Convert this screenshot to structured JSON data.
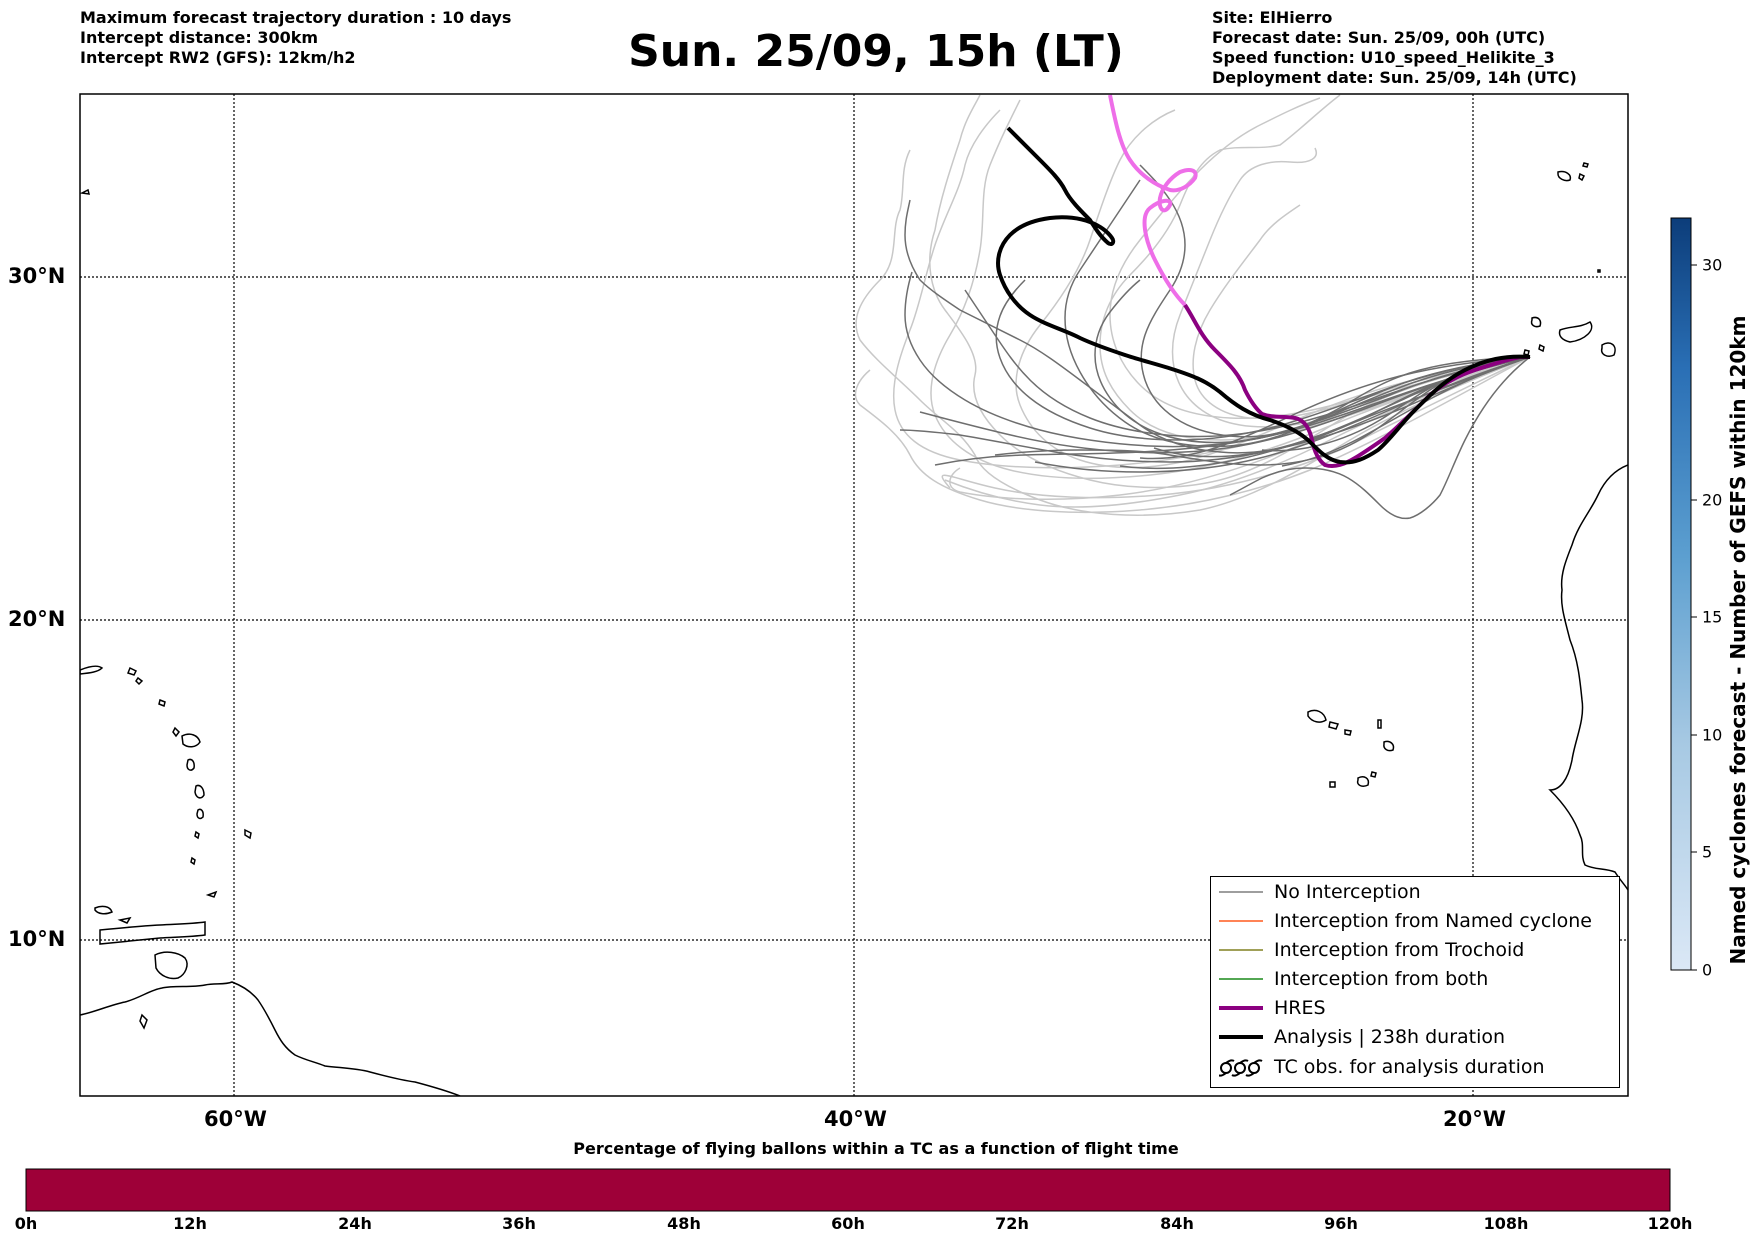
{
  "header": {
    "left_lines": [
      "Maximum forecast trajectory duration : 10 days",
      "Intercept distance: 300km",
      "Intercept RW2 (GFS):  12km/h2"
    ],
    "title": "Sun. 25/09, 15h (LT)",
    "right_lines": [
      "Site: ElHierro",
      "Forecast date: Sun. 25/09, 00h (UTC)",
      "Speed function: U10_speed_Helikite_3",
      "Deployment date: Sun. 25/09, 14h (UTC)"
    ]
  },
  "map": {
    "lat_labels": [
      "30°N",
      "20°N",
      "10°N"
    ],
    "lon_labels": [
      "60°W",
      "40°W",
      "20°W"
    ],
    "lon_range": [
      -65,
      -15
    ],
    "lat_range": [
      5.3,
      34.6
    ],
    "colors": {
      "no_interception": "#6e6e6e",
      "ensemble_light": "#c8c8c8",
      "hres": "#8b0080",
      "hres_light": "#ee6ee8",
      "analysis": "#000000"
    }
  },
  "legend": {
    "items": [
      {
        "label": "No Interception",
        "color": "#7f7f7f"
      },
      {
        "label": "Interception from Named cyclone",
        "color": "#ff5a1f"
      },
      {
        "label": "Interception from Trochoid",
        "color": "#808020"
      },
      {
        "label": "Interception from both",
        "color": "#1a8a1a"
      },
      {
        "label": "HRES",
        "color": "#8b0080"
      },
      {
        "label": "Analysis | 238h duration",
        "color": "#000000"
      },
      {
        "label": "TC obs. for analysis duration",
        "color": "#000000"
      }
    ]
  },
  "colorbar": {
    "label": "Named cyclones forecast - Number of GEFS within 120km",
    "ticks": [
      "0",
      "5",
      "10",
      "15",
      "20",
      "30"
    ],
    "tick_values": [
      0,
      5,
      10,
      15,
      20,
      30
    ],
    "range": [
      0,
      32
    ]
  },
  "flight_bar": {
    "title": "Percentage of flying ballons within a TC as a function of flight time",
    "ticks": [
      "0h",
      "12h",
      "24h",
      "36h",
      "48h",
      "60h",
      "72h",
      "84h",
      "96h",
      "108h",
      "120h"
    ],
    "fill_color": "#9e0038",
    "percentage": 0
  }
}
